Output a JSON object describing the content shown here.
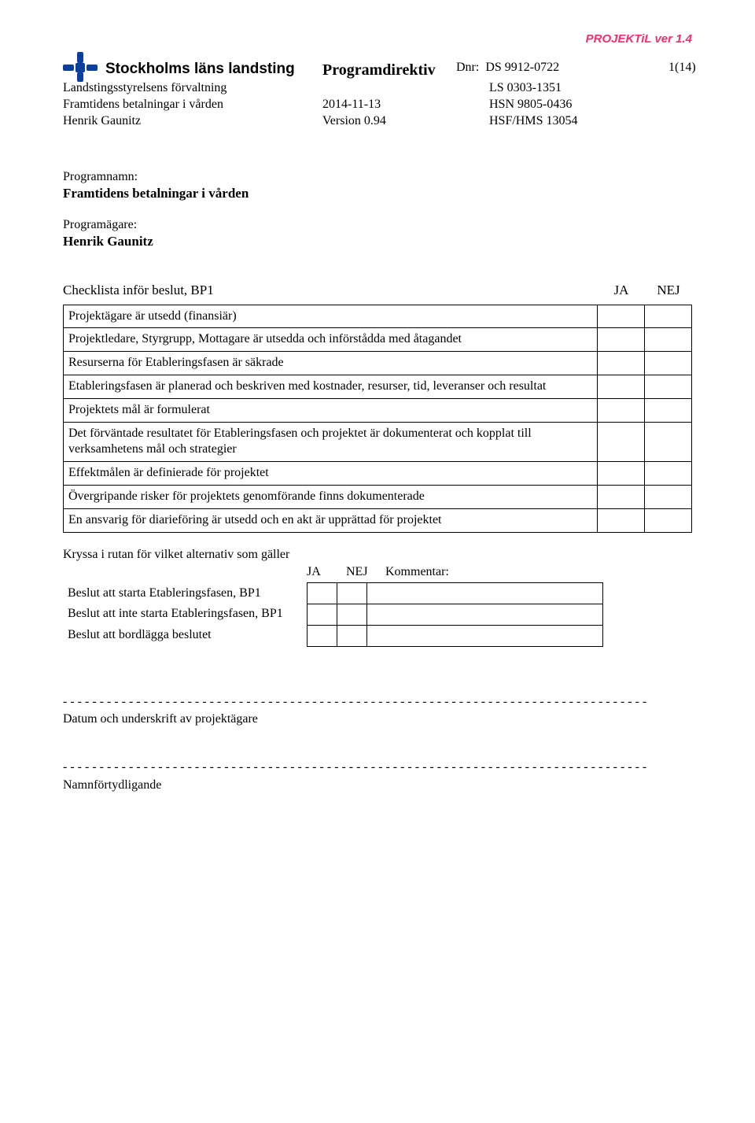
{
  "version_label": "PROJEKTiL ver 1.4",
  "org_name": "Stockholms läns landsting",
  "header": {
    "programdirektiv": "Programdirektiv",
    "dnr_label": "Dnr:",
    "dnr1": "DS 9912-0722",
    "page": "1(14)",
    "line2_left": "Landstingsstyrelsens förvaltning",
    "line2_right": "LS 0303-1351",
    "line3_left": "Framtidens betalningar i vården",
    "line3_mid": "2014-11-13",
    "line3_right": "HSN 9805-0436",
    "line4_left": "Henrik Gaunitz",
    "line4_mid": "Version 0.94",
    "line4_right": "HSF/HMS 13054"
  },
  "programnamn_label": "Programnamn:",
  "programnamn_value": "Framtidens betalningar i vården",
  "programagare_label": "Programägare:",
  "programagare_value": "Henrik Gaunitz",
  "checklist_title": "Checklista inför beslut, BP1",
  "ja": "JA",
  "nej": "NEJ",
  "checklist": [
    "Projektägare är utsedd (finansiär)",
    "Projektledare, Styrgrupp, Mottagare är utsedda och införstådda med åtagandet",
    "Resurserna för Etableringsfasen är säkrade",
    "Etableringsfasen är planerad och beskriven med kostnader, resurser, tid, leveranser och  resultat",
    "Projektets mål är formulerat",
    "Det förväntade resultatet för Etableringsfasen och projektet är dokumenterat och kopplat till verksamhetens mål och strategier",
    "Effektmålen är definierade för projektet",
    "Övergripande risker för projektets genomförande finns dokumenterade",
    "En ansvarig för diarieföring är utsedd och en akt är upprättad för projektet"
  ],
  "kryssa_label": "Kryssa i rutan för vilket alternativ som gäller",
  "kommentar": "Kommentar:",
  "decisions": [
    "Beslut att starta Etableringsfasen, BP1",
    "Beslut att inte starta Etableringsfasen, BP1",
    "Beslut att bordlägga beslutet"
  ],
  "dashline": "- - - - - - - - - - - - - - - - - - - - - - - - - - - - - - - - - - - - - - - - - - - - - - - - - - - - - - - - - - - - - - - - - - - - - - - - - - - - - - - -",
  "sig1": "Datum och underskrift av projektägare",
  "sig2": "Namnförtydligande",
  "colors": {
    "pink": "#e8336d",
    "logo_blue": "#0a3f9b",
    "text": "#000000",
    "bg": "#ffffff",
    "border": "#000000"
  }
}
